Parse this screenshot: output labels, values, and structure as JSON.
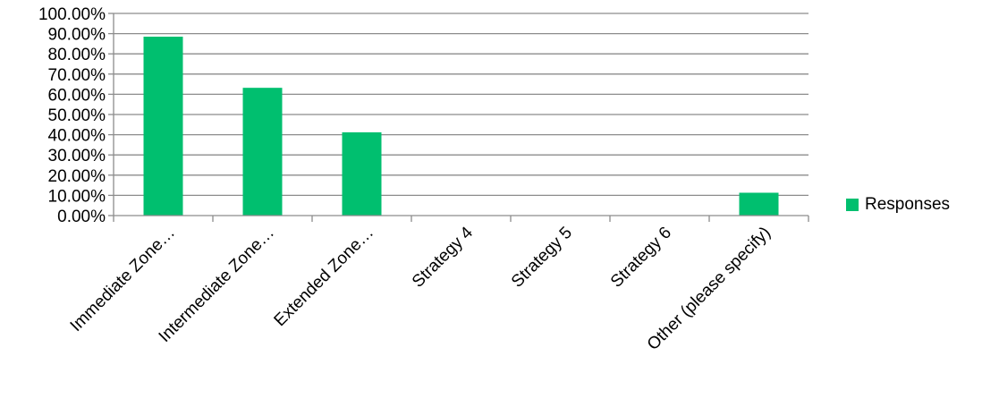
{
  "chart_data": {
    "type": "bar",
    "categories": [
      "Immediate Zone…",
      "Intermediate Zone…",
      "Extended Zone…",
      "Strategy 4",
      "Strategy 5",
      "Strategy 6",
      "Other (please specify)"
    ],
    "series": [
      {
        "name": "Responses",
        "values": [
          88.5,
          63.2,
          41.2,
          0,
          0,
          0,
          11.3
        ]
      }
    ],
    "y_ticks": [
      "0.00%",
      "10.00%",
      "20.00%",
      "30.00%",
      "40.00%",
      "50.00%",
      "60.00%",
      "70.00%",
      "80.00%",
      "90.00%",
      "100.00%"
    ],
    "ylim": [
      0,
      100
    ],
    "grid": true,
    "legend_position": "right",
    "colors": {
      "bar": "#00BF6F",
      "grid": "#8C8C8C",
      "axis": "#8C8C8C"
    }
  },
  "legend": {
    "label": "Responses"
  }
}
